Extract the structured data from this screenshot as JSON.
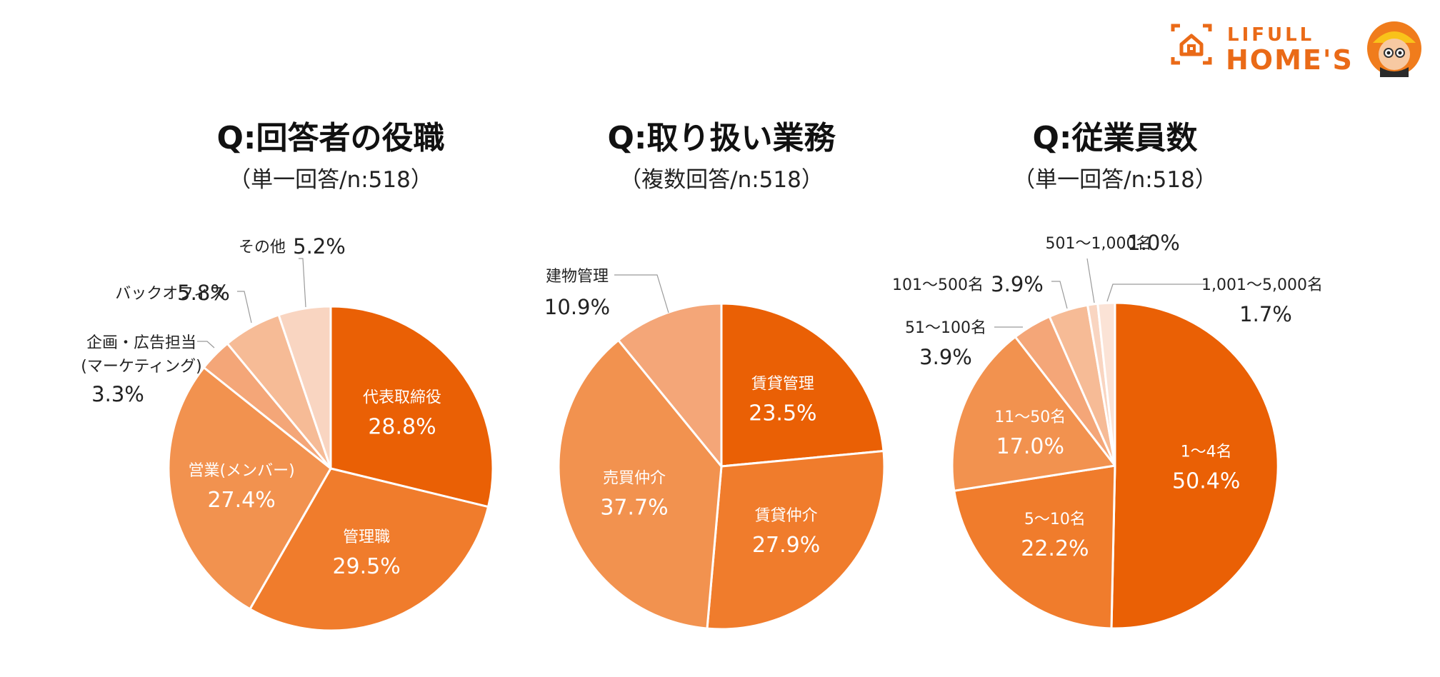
{
  "brand": {
    "line1": "LIFULL",
    "line2": "HOME'S",
    "color": "#ea6a17",
    "mascot_icon": "mascot-icon",
    "house_icon": "house-icon"
  },
  "chart_data": [
    {
      "type": "pie",
      "title": "Q:回答者の役職",
      "subtitle": "（単一回答/n:518）",
      "slices": [
        {
          "label": "代表取締役",
          "value": 28.8,
          "value_label": "28.8%",
          "color": "#ea6005",
          "label_inside": true
        },
        {
          "label": "管理職",
          "value": 29.5,
          "value_label": "29.5%",
          "color": "#f07c2c",
          "label_inside": true
        },
        {
          "label": "営業(メンバー)",
          "value": 27.4,
          "value_label": "27.4%",
          "color": "#f2924f",
          "label_inside": true
        },
        {
          "label": "企画・広告担当\n(マーケティング)",
          "value": 3.3,
          "value_label": "3.3%",
          "color": "#f4a678",
          "label_inside": false
        },
        {
          "label": "バックオフィス",
          "value": 5.8,
          "value_label": "5.8%",
          "color": "#f6bb96",
          "label_inside": false
        },
        {
          "label": "その他",
          "value": 5.2,
          "value_label": "5.2%",
          "color": "#f9d5c1",
          "label_inside": false
        }
      ]
    },
    {
      "type": "pie",
      "title": "Q:取り扱い業務",
      "subtitle": "（複数回答/n:518）",
      "slices": [
        {
          "label": "賃貸管理",
          "value": 23.5,
          "value_label": "23.5%",
          "color": "#ea6005",
          "label_inside": true
        },
        {
          "label": "賃貸仲介",
          "value": 27.9,
          "value_label": "27.9%",
          "color": "#f07c2c",
          "label_inside": true
        },
        {
          "label": "売買仲介",
          "value": 37.7,
          "value_label": "37.7%",
          "color": "#f2924f",
          "label_inside": true
        },
        {
          "label": "建物管理",
          "value": 10.9,
          "value_label": "10.9%",
          "color": "#f4a678",
          "label_inside": false
        }
      ]
    },
    {
      "type": "pie",
      "title": "Q:従業員数",
      "subtitle": "（単一回答/n:518）",
      "slices": [
        {
          "label": "1〜4名",
          "value": 50.4,
          "value_label": "50.4%",
          "color": "#ea6005",
          "label_inside": true
        },
        {
          "label": "5〜10名",
          "value": 22.2,
          "value_label": "22.2%",
          "color": "#f07c2c",
          "label_inside": true
        },
        {
          "label": "11〜50名",
          "value": 17.0,
          "value_label": "17.0%",
          "color": "#f2924f",
          "label_inside": true
        },
        {
          "label": "51〜100名",
          "value": 3.9,
          "value_label": "3.9%",
          "color": "#f4a678",
          "label_inside": false
        },
        {
          "label": "101〜500名",
          "value": 3.9,
          "value_label": "3.9%",
          "color": "#f6bb96",
          "label_inside": false
        },
        {
          "label": "501〜1,000名",
          "value": 1.0,
          "value_label": "1.0%",
          "color": "#f9d5c1",
          "label_inside": false
        },
        {
          "label": "1,001〜5,000名",
          "value": 1.7,
          "value_label": "1.7%",
          "color": "#fbe3d6",
          "label_inside": false
        }
      ]
    }
  ]
}
